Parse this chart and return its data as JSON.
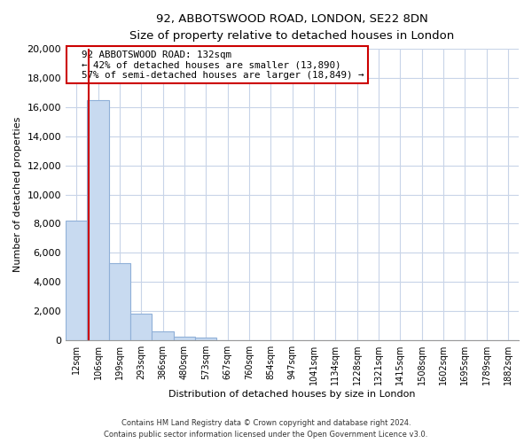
{
  "title_line1": "92, ABBOTSWOOD ROAD, LONDON, SE22 8DN",
  "title_line2": "Size of property relative to detached houses in London",
  "xlabel": "Distribution of detached houses by size in London",
  "ylabel": "Number of detached properties",
  "bar_labels": [
    "12sqm",
    "106sqm",
    "199sqm",
    "293sqm",
    "386sqm",
    "480sqm",
    "573sqm",
    "667sqm",
    "760sqm",
    "854sqm",
    "947sqm",
    "1041sqm",
    "1134sqm",
    "1228sqm",
    "1321sqm",
    "1415sqm",
    "1508sqm",
    "1602sqm",
    "1695sqm",
    "1789sqm",
    "1882sqm"
  ],
  "bar_values": [
    8200,
    16500,
    5300,
    1800,
    600,
    270,
    200,
    0,
    0,
    0,
    0,
    0,
    0,
    0,
    0,
    0,
    0,
    0,
    0,
    0,
    0
  ],
  "bar_color": "#c8daf0",
  "bar_edge_color": "#90b0d8",
  "ylim": [
    0,
    20000
  ],
  "yticks": [
    0,
    2000,
    4000,
    6000,
    8000,
    10000,
    12000,
    14000,
    16000,
    18000,
    20000
  ],
  "red_line_x": 0.55,
  "red_line_color": "#cc0000",
  "annotation_box_text_line1": "92 ABBOTSWOOD ROAD: 132sqm",
  "annotation_box_text_line2": "← 42% of detached houses are smaller (13,890)",
  "annotation_box_text_line3": "57% of semi-detached houses are larger (18,849) →",
  "annotation_box_edgecolor": "#cc0000",
  "annotation_box_facecolor": "#ffffff",
  "footer_line1": "Contains HM Land Registry data © Crown copyright and database right 2024.",
  "footer_line2": "Contains public sector information licensed under the Open Government Licence v3.0.",
  "background_color": "#ffffff",
  "grid_color": "#c8d4e8"
}
